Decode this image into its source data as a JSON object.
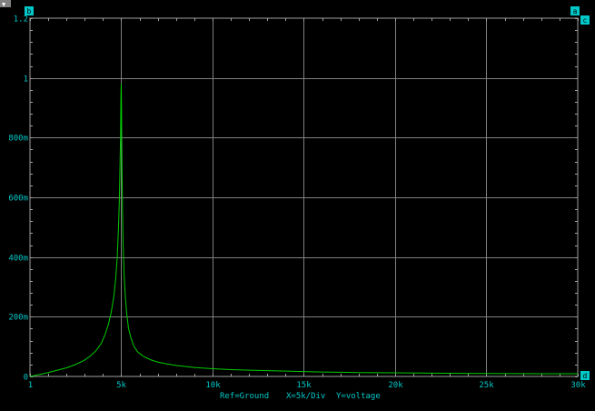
{
  "window": {
    "corner_glyph": "▼"
  },
  "cursors": {
    "b": "b",
    "a": "a",
    "c": "c",
    "d": "d"
  },
  "colors": {
    "background": "#000000",
    "grid": "#808080",
    "axis_text": "#00c8c8",
    "trace": "#00cc00",
    "cursor_marker": "#00c8c8"
  },
  "caption": {
    "ref": "Ref=Ground",
    "xdiv": "X=5k/Div",
    "yvar": "Y=voltage"
  },
  "chart_data": {
    "type": "line",
    "x_tick_labels": [
      "1",
      "5k",
      "10k",
      "15k",
      "20k",
      "25k",
      "30k"
    ],
    "x_tick_values": [
      1,
      5000,
      10000,
      15000,
      20000,
      25000,
      30000
    ],
    "y_tick_labels": [
      "0",
      "200m",
      "400m",
      "600m",
      "800m",
      "1",
      "1.2"
    ],
    "y_tick_values": [
      0,
      0.2,
      0.4,
      0.6,
      0.8,
      1.0,
      1.2
    ],
    "xlim": [
      1,
      30000
    ],
    "ylim": [
      0,
      1.2
    ],
    "grid": true,
    "series": [
      {
        "x": [
          1,
          500,
          1000,
          1500,
          2000,
          2500,
          3000,
          3300,
          3600,
          3900,
          4100,
          4300,
          4450,
          4600,
          4700,
          4780,
          4850,
          4900,
          4930,
          4960,
          4980,
          4990,
          5000,
          5010,
          5020,
          5040,
          5070,
          5100,
          5150,
          5220,
          5300,
          5400,
          5550,
          5700,
          5900,
          6200,
          6600,
          7000,
          7500,
          8000,
          9000,
          10000,
          11000,
          12000,
          14000,
          16000,
          18000,
          20000,
          22000,
          25000,
          28000,
          30000
        ],
        "y": [
          0,
          0.006,
          0.013,
          0.021,
          0.029,
          0.04,
          0.055,
          0.068,
          0.085,
          0.11,
          0.138,
          0.175,
          0.215,
          0.27,
          0.33,
          0.4,
          0.5,
          0.6,
          0.7,
          0.8,
          0.92,
          0.96,
          0.98,
          0.93,
          0.84,
          0.7,
          0.56,
          0.45,
          0.35,
          0.27,
          0.21,
          0.16,
          0.125,
          0.1,
          0.082,
          0.068,
          0.056,
          0.048,
          0.042,
          0.037,
          0.03,
          0.026,
          0.023,
          0.021,
          0.018,
          0.015,
          0.013,
          0.012,
          0.011,
          0.01,
          0.009,
          0.009
        ]
      }
    ]
  }
}
